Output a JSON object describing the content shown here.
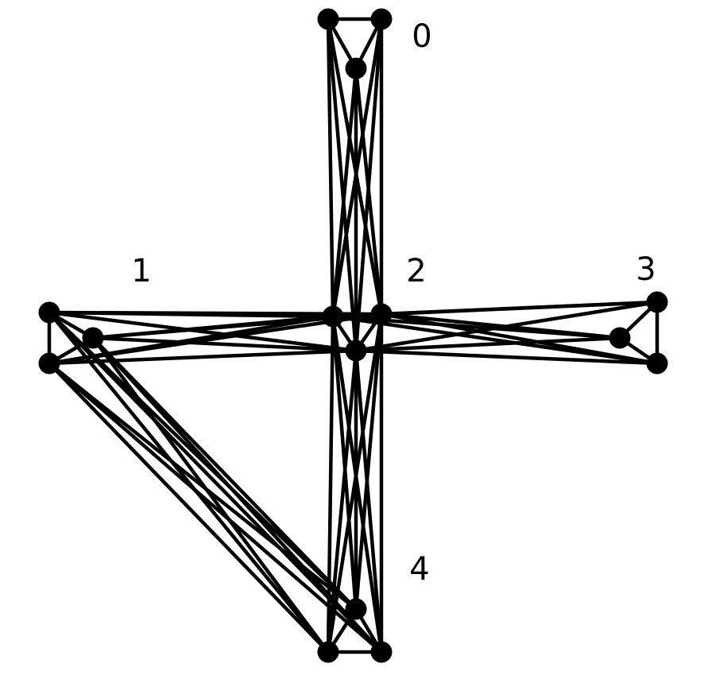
{
  "colors": {
    "edge": "#000000",
    "node": "#000000",
    "label": "#000000",
    "background": "#ffffff"
  },
  "clusters": [
    {
      "id": "0",
      "label": "0"
    },
    {
      "id": "1",
      "label": "1"
    },
    {
      "id": "2",
      "label": "2"
    },
    {
      "id": "3",
      "label": "3"
    },
    {
      "id": "4",
      "label": "4"
    }
  ],
  "nodes": [
    {
      "id": "c0-a",
      "cluster": "0"
    },
    {
      "id": "c0-b",
      "cluster": "0"
    },
    {
      "id": "c0-c",
      "cluster": "0"
    },
    {
      "id": "c1-a",
      "cluster": "1"
    },
    {
      "id": "c1-b",
      "cluster": "1"
    },
    {
      "id": "c1-c",
      "cluster": "1"
    },
    {
      "id": "c2-a",
      "cluster": "2"
    },
    {
      "id": "c2-b",
      "cluster": "2"
    },
    {
      "id": "c2-c",
      "cluster": "2"
    },
    {
      "id": "c3-a",
      "cluster": "3"
    },
    {
      "id": "c3-b",
      "cluster": "3"
    },
    {
      "id": "c3-c",
      "cluster": "3"
    },
    {
      "id": "c4-a",
      "cluster": "4"
    },
    {
      "id": "c4-b",
      "cluster": "4"
    },
    {
      "id": "c4-c",
      "cluster": "4"
    }
  ],
  "edges": [
    [
      "c0-a",
      "c0-b"
    ],
    [
      "c0-a",
      "c0-c"
    ],
    [
      "c0-b",
      "c0-c"
    ],
    [
      "c1-a",
      "c1-b"
    ],
    [
      "c1-a",
      "c1-c"
    ],
    [
      "c1-b",
      "c1-c"
    ],
    [
      "c3-a",
      "c3-b"
    ],
    [
      "c3-a",
      "c3-c"
    ],
    [
      "c3-b",
      "c3-c"
    ],
    [
      "c4-a",
      "c4-b"
    ],
    [
      "c4-a",
      "c4-c"
    ],
    [
      "c4-b",
      "c4-c"
    ],
    [
      "c2-a",
      "c2-b"
    ],
    [
      "c2-a",
      "c2-c"
    ],
    [
      "c2-b",
      "c2-c"
    ],
    [
      "c0-a",
      "c2-a"
    ],
    [
      "c0-a",
      "c2-b"
    ],
    [
      "c0-a",
      "c2-c"
    ],
    [
      "c0-b",
      "c2-a"
    ],
    [
      "c0-b",
      "c2-b"
    ],
    [
      "c0-b",
      "c2-c"
    ],
    [
      "c0-c",
      "c2-a"
    ],
    [
      "c0-c",
      "c2-b"
    ],
    [
      "c0-c",
      "c2-c"
    ],
    [
      "c1-a",
      "c2-a"
    ],
    [
      "c1-a",
      "c2-b"
    ],
    [
      "c1-a",
      "c2-c"
    ],
    [
      "c1-b",
      "c2-a"
    ],
    [
      "c1-b",
      "c2-b"
    ],
    [
      "c1-b",
      "c2-c"
    ],
    [
      "c1-c",
      "c2-a"
    ],
    [
      "c1-c",
      "c2-b"
    ],
    [
      "c1-c",
      "c2-c"
    ],
    [
      "c3-a",
      "c2-a"
    ],
    [
      "c3-a",
      "c2-b"
    ],
    [
      "c3-a",
      "c2-c"
    ],
    [
      "c3-b",
      "c2-a"
    ],
    [
      "c3-b",
      "c2-b"
    ],
    [
      "c3-b",
      "c2-c"
    ],
    [
      "c3-c",
      "c2-a"
    ],
    [
      "c3-c",
      "c2-b"
    ],
    [
      "c3-c",
      "c2-c"
    ],
    [
      "c4-a",
      "c2-a"
    ],
    [
      "c4-a",
      "c2-b"
    ],
    [
      "c4-a",
      "c2-c"
    ],
    [
      "c4-b",
      "c2-a"
    ],
    [
      "c4-b",
      "c2-b"
    ],
    [
      "c4-b",
      "c2-c"
    ],
    [
      "c4-c",
      "c2-a"
    ],
    [
      "c4-c",
      "c2-b"
    ],
    [
      "c4-c",
      "c2-c"
    ],
    [
      "c1-a",
      "c4-a"
    ],
    [
      "c1-a",
      "c4-b"
    ],
    [
      "c1-a",
      "c4-c"
    ],
    [
      "c1-b",
      "c4-a"
    ],
    [
      "c1-b",
      "c4-b"
    ],
    [
      "c1-b",
      "c4-c"
    ],
    [
      "c1-c",
      "c4-a"
    ],
    [
      "c1-c",
      "c4-b"
    ],
    [
      "c1-c",
      "c4-c"
    ]
  ]
}
